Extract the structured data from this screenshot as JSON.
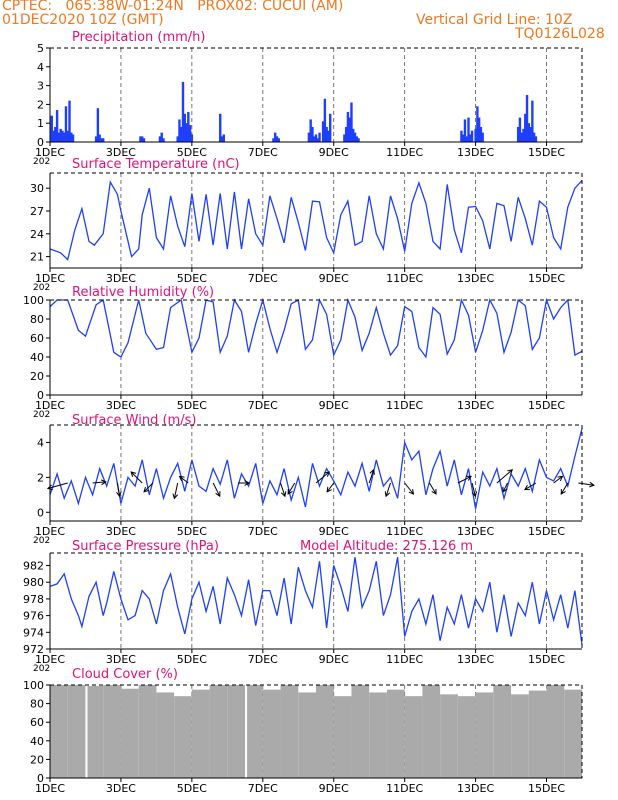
{
  "header": {
    "line1": "CPTEC:   065:38W-01:24N   PROX02: CUCUI (AM)",
    "line2": "01DEC2020 10Z (GMT)",
    "grid_note": "Vertical Grid Line: 10Z",
    "code": "TQ0126L028"
  },
  "colors": {
    "header": "#f07820",
    "title": "#e0127a",
    "series": "#1f3fff",
    "cloud": "#aaaaaa",
    "axis": "#000000"
  },
  "x_axis": {
    "tick_labels": [
      "1DEC",
      "3DEC",
      "5DEC",
      "7DEC",
      "9DEC",
      "11DEC",
      "13DEC",
      "15DEC"
    ],
    "year_stub": "202"
  },
  "chart_data": [
    {
      "type": "bar",
      "title": "Precipitation (mm/h)",
      "ylim": [
        0,
        5
      ],
      "yticks": [
        0,
        1,
        2,
        3,
        4,
        5
      ],
      "series": [
        {
          "x_day": [
            1.05,
            1.1,
            1.15,
            1.2,
            1.25,
            1.3,
            1.35,
            1.4,
            1.45,
            1.5,
            1.55,
            1.6,
            1.65,
            2.3,
            2.35,
            2.4,
            2.45,
            2.5,
            3.55,
            3.6,
            3.65,
            4.1,
            4.15,
            4.2,
            4.6,
            4.65,
            4.7,
            4.75,
            4.8,
            4.85,
            4.9,
            4.95,
            5.0,
            5.8,
            5.85,
            5.9,
            7.3,
            7.35,
            7.4,
            7.45,
            8.3,
            8.35,
            8.4,
            8.45,
            8.5,
            8.55,
            8.6,
            8.7,
            8.75,
            8.8,
            8.85,
            8.9,
            9.3,
            9.35,
            9.4,
            9.45,
            9.5,
            9.55,
            9.6,
            9.65,
            9.7,
            12.6,
            12.65,
            12.7,
            12.75,
            12.8,
            12.85,
            12.9,
            13.0,
            13.05,
            13.1,
            13.15,
            13.2,
            14.2,
            14.25,
            14.3,
            14.35,
            14.4,
            14.45,
            14.5,
            14.55,
            14.6,
            14.65,
            14.7
          ],
          "values": [
            1.4,
            0.6,
            0.8,
            1.7,
            0.5,
            0.7,
            0.6,
            0.5,
            1.9,
            0.6,
            2.2,
            0.5,
            0.4,
            0.3,
            1.8,
            0.4,
            0.2,
            0.2,
            0.3,
            0.3,
            0.2,
            0.3,
            0.5,
            0.2,
            0.3,
            1.2,
            0.8,
            3.2,
            1.5,
            1.0,
            1.6,
            0.9,
            0.4,
            1.5,
            0.3,
            0.4,
            0.2,
            0.5,
            0.3,
            0.2,
            0.5,
            1.2,
            0.8,
            0.3,
            0.4,
            0.2,
            0.5,
            1.1,
            2.3,
            0.8,
            0.6,
            1.5,
            0.4,
            0.8,
            1.6,
            1.3,
            2.1,
            0.7,
            0.5,
            0.3,
            0.2,
            0.6,
            0.4,
            1.2,
            0.3,
            1.3,
            0.4,
            0.6,
            0.7,
            1.9,
            1.3,
            0.8,
            0.5,
            0.8,
            1.3,
            0.5,
            0.7,
            1.5,
            2.5,
            1.0,
            0.8,
            2.2,
            0.5,
            0.3
          ]
        }
      ]
    },
    {
      "type": "line",
      "title": "Surface Temperature (nC)",
      "ylim": [
        19.5,
        32
      ],
      "yticks": [
        21,
        24,
        27,
        30
      ],
      "series": [
        {
          "x_day": [
            1.0,
            1.3,
            1.5,
            1.7,
            1.9,
            2.1,
            2.25,
            2.5,
            2.7,
            2.9,
            3.0,
            3.3,
            3.5,
            3.6,
            3.8,
            4.0,
            4.2,
            4.4,
            4.6,
            4.8,
            5.0,
            5.2,
            5.4,
            5.6,
            5.8,
            6.0,
            6.2,
            6.4,
            6.6,
            6.8,
            7.0,
            7.2,
            7.4,
            7.6,
            7.8,
            8.0,
            8.2,
            8.4,
            8.6,
            8.8,
            9.0,
            9.2,
            9.4,
            9.6,
            9.8,
            10.0,
            10.2,
            10.4,
            10.6,
            10.8,
            11.0,
            11.2,
            11.4,
            11.6,
            11.8,
            12.0,
            12.2,
            12.4,
            12.6,
            12.8,
            13.0,
            13.2,
            13.4,
            13.6,
            13.8,
            14.0,
            14.2,
            14.4,
            14.6,
            14.8,
            15.0,
            15.2,
            15.4,
            15.6,
            15.8,
            16.0
          ],
          "values": [
            22.0,
            21.5,
            20.6,
            24.5,
            27.3,
            23.0,
            22.5,
            24.0,
            30.8,
            29.2,
            27.0,
            21.0,
            22.0,
            26.5,
            30.0,
            23.5,
            22.0,
            29.0,
            25.0,
            22.3,
            29.3,
            23.0,
            29.2,
            22.5,
            29.3,
            22.0,
            29.5,
            22.0,
            28.6,
            24.0,
            22.5,
            29.0,
            26.0,
            22.8,
            28.8,
            25.5,
            21.8,
            28.3,
            28.2,
            23.5,
            21.5,
            26.5,
            28.3,
            22.5,
            23.0,
            29.0,
            24.0,
            22.0,
            29.0,
            26.0,
            21.7,
            28.0,
            30.7,
            28.0,
            23.0,
            22.0,
            30.5,
            24.5,
            21.5,
            27.5,
            27.6,
            25.7,
            22.0,
            28.0,
            27.7,
            23.0,
            28.8,
            26.0,
            22.5,
            28.3,
            27.5,
            23.5,
            22.0,
            27.5,
            30.0,
            31.0
          ]
        }
      ]
    },
    {
      "type": "line",
      "title": "Relative Humidity (%)",
      "ylim": [
        0,
        100
      ],
      "yticks": [
        0,
        20,
        40,
        60,
        80,
        100
      ],
      "series": [
        {
          "x_day": [
            1.0,
            1.2,
            1.5,
            1.8,
            2.0,
            2.3,
            2.5,
            2.8,
            3.0,
            3.2,
            3.5,
            3.7,
            4.0,
            4.2,
            4.4,
            4.7,
            5.0,
            5.2,
            5.4,
            5.6,
            5.8,
            6.0,
            6.2,
            6.4,
            6.6,
            6.8,
            7.0,
            7.2,
            7.4,
            7.6,
            7.8,
            8.0,
            8.2,
            8.4,
            8.6,
            8.8,
            9.0,
            9.2,
            9.4,
            9.6,
            9.8,
            10.0,
            10.2,
            10.4,
            10.6,
            10.8,
            11.0,
            11.2,
            11.4,
            11.6,
            11.8,
            12.0,
            12.2,
            12.4,
            12.6,
            12.8,
            13.0,
            13.2,
            13.4,
            13.6,
            13.8,
            14.0,
            14.2,
            14.4,
            14.6,
            14.8,
            15.0,
            15.2,
            15.4,
            15.6,
            15.8,
            16.0
          ],
          "values": [
            93,
            100,
            100,
            68,
            62,
            95,
            100,
            45,
            40,
            55,
            100,
            65,
            48,
            50,
            92,
            100,
            45,
            60,
            100,
            98,
            45,
            62,
            100,
            88,
            45,
            75,
            100,
            70,
            45,
            68,
            96,
            100,
            48,
            58,
            100,
            85,
            42,
            58,
            100,
            82,
            47,
            65,
            92,
            65,
            42,
            52,
            93,
            88,
            50,
            40,
            92,
            85,
            43,
            58,
            100,
            84,
            45,
            68,
            100,
            86,
            45,
            66,
            100,
            94,
            48,
            60,
            100,
            80,
            92,
            100,
            42,
            46
          ]
        }
      ]
    },
    {
      "type": "line",
      "title": "Surface Wind (m/s)",
      "ylim": [
        -0.5,
        5
      ],
      "yticks": [
        0,
        2,
        4
      ],
      "series": [
        {
          "x_day": [
            1.0,
            1.2,
            1.4,
            1.6,
            1.8,
            2.0,
            2.2,
            2.4,
            2.6,
            2.8,
            3.0,
            3.2,
            3.4,
            3.6,
            3.8,
            4.0,
            4.2,
            4.4,
            4.6,
            4.8,
            5.0,
            5.2,
            5.4,
            5.6,
            5.8,
            6.0,
            6.2,
            6.4,
            6.6,
            6.8,
            7.0,
            7.2,
            7.4,
            7.6,
            7.8,
            8.0,
            8.2,
            8.4,
            8.6,
            8.8,
            9.0,
            9.2,
            9.4,
            9.6,
            9.8,
            10.0,
            10.2,
            10.4,
            10.6,
            10.8,
            11.0,
            11.2,
            11.4,
            11.6,
            11.8,
            12.0,
            12.2,
            12.4,
            12.6,
            12.8,
            13.0,
            13.2,
            13.4,
            13.6,
            13.8,
            14.0,
            14.2,
            14.4,
            14.6,
            14.8,
            15.0,
            15.2,
            15.4,
            15.6,
            15.8,
            16.0
          ],
          "values": [
            1.0,
            2.2,
            0.8,
            1.8,
            0.5,
            2.0,
            1.0,
            2.5,
            1.5,
            2.8,
            0.5,
            2.0,
            1.5,
            3.0,
            1.0,
            2.5,
            0.8,
            2.0,
            2.8,
            1.2,
            3.0,
            1.5,
            1.2,
            2.5,
            1.6,
            3.0,
            0.8,
            2.2,
            1.5,
            2.8,
            0.5,
            1.8,
            1.0,
            2.5,
            0.7,
            2.0,
            0.3,
            2.8,
            1.5,
            2.5,
            1.8,
            1.0,
            2.3,
            1.5,
            2.8,
            1.2,
            3.0,
            1.5,
            2.0,
            0.8,
            4.0,
            3.0,
            3.5,
            1.0,
            2.5,
            3.5,
            1.5,
            3.0,
            1.0,
            2.5,
            0.2,
            2.3,
            1.5,
            2.5,
            0.8,
            2.2,
            1.5,
            2.5,
            1.2,
            3.0,
            2.0,
            1.8,
            2.5,
            1.5,
            3.2,
            4.8
          ]
        }
      ],
      "arrows": [
        {
          "x_day": 1.5,
          "u": -0.9,
          "v": -0.25
        },
        {
          "x_day": 2.2,
          "u": 0.6,
          "v": 0.05
        },
        {
          "x_day": 2.9,
          "u": 0.1,
          "v": -0.6
        },
        {
          "x_day": 3.6,
          "u": -0.5,
          "v": 0.5
        },
        {
          "x_day": 3.9,
          "u": -0.4,
          "v": -0.4
        },
        {
          "x_day": 4.6,
          "u": -0.15,
          "v": -0.7
        },
        {
          "x_day": 4.9,
          "u": -0.4,
          "v": 0.3
        },
        {
          "x_day": 5.6,
          "u": 0.3,
          "v": -0.6
        },
        {
          "x_day": 6.3,
          "u": 0.5,
          "v": 0.0
        },
        {
          "x_day": 7.5,
          "u": 0.2,
          "v": -0.6
        },
        {
          "x_day": 7.9,
          "u": -0.3,
          "v": -0.5
        },
        {
          "x_day": 8.5,
          "u": 0.6,
          "v": 0.5
        },
        {
          "x_day": 9.0,
          "u": -0.3,
          "v": -0.4
        },
        {
          "x_day": 10.0,
          "u": 0.2,
          "v": 0.6
        },
        {
          "x_day": 10.6,
          "u": -0.2,
          "v": -0.6
        },
        {
          "x_day": 11.0,
          "u": 0.4,
          "v": -0.5
        },
        {
          "x_day": 11.7,
          "u": 0.3,
          "v": -0.5
        },
        {
          "x_day": 12.5,
          "u": 0.6,
          "v": 0.3
        },
        {
          "x_day": 12.9,
          "u": 0.15,
          "v": -0.6
        },
        {
          "x_day": 13.6,
          "u": 0.7,
          "v": 0.6
        },
        {
          "x_day": 13.9,
          "u": -0.2,
          "v": -0.4
        },
        {
          "x_day": 14.7,
          "u": -0.5,
          "v": -0.3
        },
        {
          "x_day": 15.2,
          "u": 0.4,
          "v": 0.3
        },
        {
          "x_day": 15.6,
          "u": -0.3,
          "v": -0.5
        },
        {
          "x_day": 15.9,
          "u": 0.7,
          "v": -0.1
        }
      ]
    },
    {
      "type": "line",
      "title": "Surface Pressure (hPa)",
      "subtitle": "Model Altitude: 275.126 m",
      "ylim": [
        972,
        983.5
      ],
      "yticks": [
        972,
        974,
        976,
        978,
        980,
        982
      ],
      "series": [
        {
          "x_day": [
            1.0,
            1.2,
            1.4,
            1.6,
            1.8,
            1.9,
            2.1,
            2.3,
            2.5,
            2.6,
            2.8,
            3.0,
            3.2,
            3.4,
            3.6,
            3.8,
            4.0,
            4.2,
            4.4,
            4.6,
            4.8,
            5.0,
            5.2,
            5.4,
            5.6,
            5.8,
            6.0,
            6.2,
            6.4,
            6.6,
            6.8,
            7.0,
            7.2,
            7.4,
            7.6,
            7.8,
            8.0,
            8.2,
            8.4,
            8.6,
            8.8,
            9.0,
            9.2,
            9.4,
            9.6,
            9.8,
            10.0,
            10.2,
            10.4,
            10.6,
            10.8,
            11.0,
            11.2,
            11.4,
            11.6,
            11.8,
            12.0,
            12.2,
            12.4,
            12.6,
            12.8,
            13.0,
            13.2,
            13.4,
            13.6,
            13.8,
            14.0,
            14.2,
            14.4,
            14.6,
            14.8,
            15.0,
            15.2,
            15.4,
            15.6,
            15.8,
            16.0
          ],
          "values": [
            979.5,
            979.8,
            981.0,
            978.0,
            976.0,
            974.7,
            978.3,
            980.0,
            976.0,
            977.5,
            981.3,
            978.0,
            975.5,
            976.0,
            979.0,
            978.0,
            975.0,
            979.0,
            981.0,
            977.0,
            973.8,
            978.0,
            980.0,
            976.5,
            979.5,
            975.0,
            980.5,
            978.5,
            976.0,
            980.3,
            974.8,
            979.0,
            979.0,
            976.0,
            980.5,
            975.0,
            981.8,
            979.0,
            977.0,
            982.5,
            974.5,
            982.0,
            979.5,
            976.5,
            983.0,
            977.0,
            979.0,
            982.5,
            976.0,
            978.5,
            983.0,
            973.5,
            976.5,
            978.0,
            975.0,
            978.5,
            973.0,
            977.0,
            975.0,
            978.5,
            974.5,
            978.0,
            976.5,
            980.0,
            974.0,
            978.5,
            973.5,
            977.5,
            976.0,
            980.0,
            975.0,
            979.0,
            975.5,
            978.5,
            974.5,
            979.0,
            972.5
          ]
        }
      ]
    },
    {
      "type": "bar",
      "title": "Cloud Cover (%)",
      "ylim": [
        0,
        100
      ],
      "yticks": [
        0,
        20,
        40,
        60,
        80,
        100
      ],
      "series": [
        {
          "x_day": [
            1.0,
            1.5,
            2.0,
            2.5,
            3.0,
            3.5,
            4.0,
            4.5,
            5.0,
            5.5,
            6.0,
            6.5,
            7.0,
            7.5,
            8.0,
            8.5,
            9.0,
            9.5,
            10.0,
            10.5,
            11.0,
            11.5,
            12.0,
            12.5,
            13.0,
            13.5,
            14.0,
            14.5,
            15.0,
            15.5,
            16.0
          ],
          "values": [
            100,
            100,
            99,
            100,
            96,
            100,
            92,
            88,
            95,
            100,
            100,
            100,
            95,
            100,
            92,
            100,
            88,
            100,
            92,
            95,
            88,
            100,
            90,
            88,
            92,
            100,
            90,
            94,
            100,
            95,
            93
          ]
        }
      ]
    }
  ]
}
